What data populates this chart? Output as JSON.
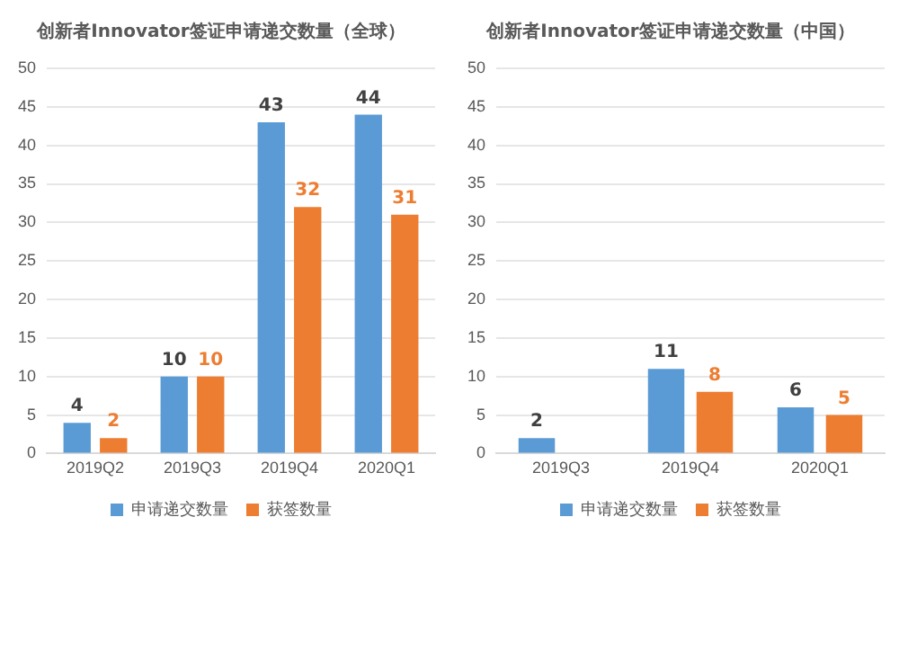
{
  "chart_data": [
    {
      "type": "bar",
      "title": "创新者Innovator签证申请递交数量（全球）",
      "categories": [
        "2019Q2",
        "2019Q3",
        "2019Q4",
        "2020Q1"
      ],
      "series": [
        {
          "name": "申请递交数量",
          "color": "#5b9bd5",
          "values": [
            4,
            10,
            43,
            44
          ]
        },
        {
          "name": "获签数量",
          "color": "#ed7d31",
          "values": [
            2,
            10,
            32,
            31
          ]
        }
      ],
      "ylim": [
        0,
        50
      ],
      "yticks": [
        0,
        5,
        10,
        15,
        20,
        25,
        30,
        35,
        40,
        45,
        50
      ],
      "grid": "y",
      "legend": "bottom",
      "data_labels": true
    },
    {
      "type": "bar",
      "title": "创新者Innovator签证申请递交数量（中国）",
      "categories": [
        "2019Q3",
        "2019Q4",
        "2020Q1"
      ],
      "series": [
        {
          "name": "申请递交数量",
          "color": "#5b9bd5",
          "values": [
            2,
            11,
            6
          ]
        },
        {
          "name": "获签数量",
          "color": "#ed7d31",
          "values": [
            null,
            8,
            5
          ]
        }
      ],
      "ylim": [
        0,
        50
      ],
      "yticks": [
        0,
        5,
        10,
        15,
        20,
        25,
        30,
        35,
        40,
        45,
        50
      ],
      "grid": "y",
      "legend": "bottom",
      "data_labels": true
    }
  ]
}
